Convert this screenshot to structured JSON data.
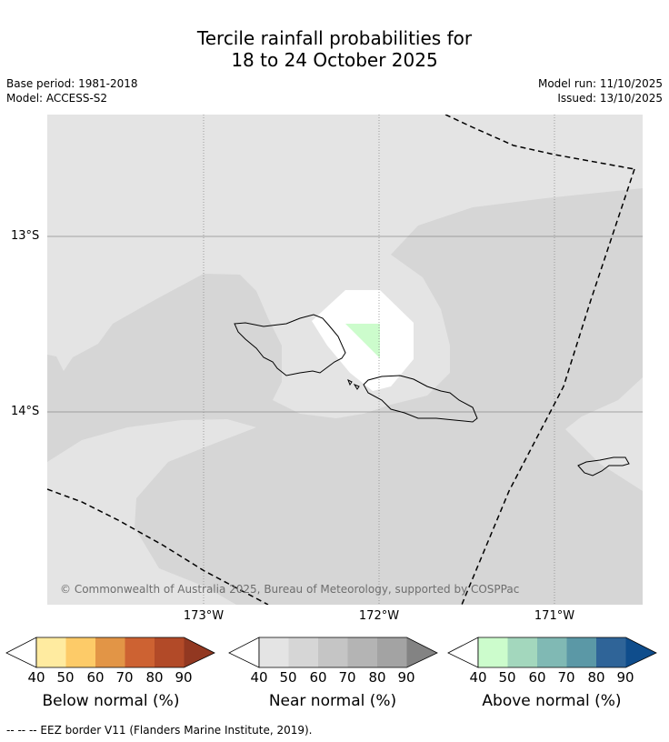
{
  "title": {
    "line1": "Tercile rainfall probabilities for",
    "line2": "18 to 24 October 2025"
  },
  "meta": {
    "base_period": "Base period: 1981-2018",
    "model": "Model: ACCESS-S2",
    "model_run": "Model run: 11/10/2025",
    "issued": "Issued: 13/10/2025"
  },
  "map": {
    "lat_labels": [
      "13°S",
      "14°S"
    ],
    "lon_labels": [
      "173°W",
      "172°W",
      "171°W"
    ],
    "copyright": "© Commonwealth of Australia 2025, Bureau of Meteorology, supported by COSPPac",
    "colors": {
      "ocean_light": "#e4e4e4",
      "near_normal_40": "#d6d6d6",
      "no_signal": "#ffffff",
      "above_normal_40": "#ccfccc"
    }
  },
  "colorbars": [
    {
      "name": "below",
      "title": "Below normal (%)",
      "ticks": [
        "40",
        "50",
        "60",
        "70",
        "80",
        "90"
      ],
      "colors": [
        "#ffeba0",
        "#fdcb68",
        "#e29546",
        "#cd6232",
        "#b24a28",
        "#923821"
      ]
    },
    {
      "name": "near",
      "title": "Near normal (%)",
      "ticks": [
        "40",
        "50",
        "60",
        "70",
        "80",
        "90"
      ],
      "colors": [
        "#e4e4e4",
        "#d6d6d6",
        "#c5c5c5",
        "#b4b4b4",
        "#a3a3a3",
        "#838383"
      ]
    },
    {
      "name": "above",
      "title": "Above normal (%)",
      "ticks": [
        "40",
        "50",
        "60",
        "70",
        "80",
        "90"
      ],
      "colors": [
        "#ccfccc",
        "#a3d7bd",
        "#80b9b4",
        "#5b98a6",
        "#2f6498",
        "#0f4d8c"
      ]
    }
  ],
  "footnote": "--  --  -- EEZ border V11 (Flanders Marine Institute, 2019)."
}
